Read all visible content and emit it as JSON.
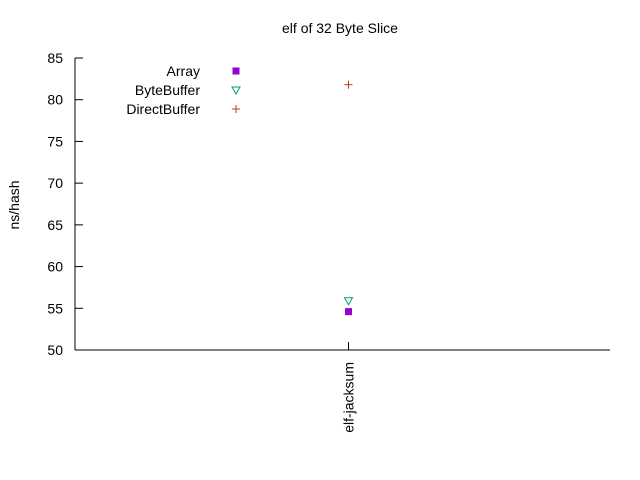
{
  "chart_data": {
    "type": "scatter",
    "title": "elf of 32 Byte Slice",
    "ylabel": "ns/hash",
    "xlabel": "",
    "categories": [
      "elf-jacksum"
    ],
    "ylim": [
      50,
      85
    ],
    "yticks": [
      50,
      55,
      60,
      65,
      70,
      75,
      80,
      85
    ],
    "grid": false,
    "legend_position": "top-left",
    "series": [
      {
        "name": "Array",
        "marker": "filled-square",
        "color": "#9400d3",
        "values": [
          54.6
        ]
      },
      {
        "name": "ByteBuffer",
        "marker": "open-triangle-down",
        "color": "#009e73",
        "values": [
          55.9
        ]
      },
      {
        "name": "DirectBuffer",
        "marker": "plus",
        "color": "#c0392b",
        "values": [
          81.8
        ]
      }
    ]
  }
}
